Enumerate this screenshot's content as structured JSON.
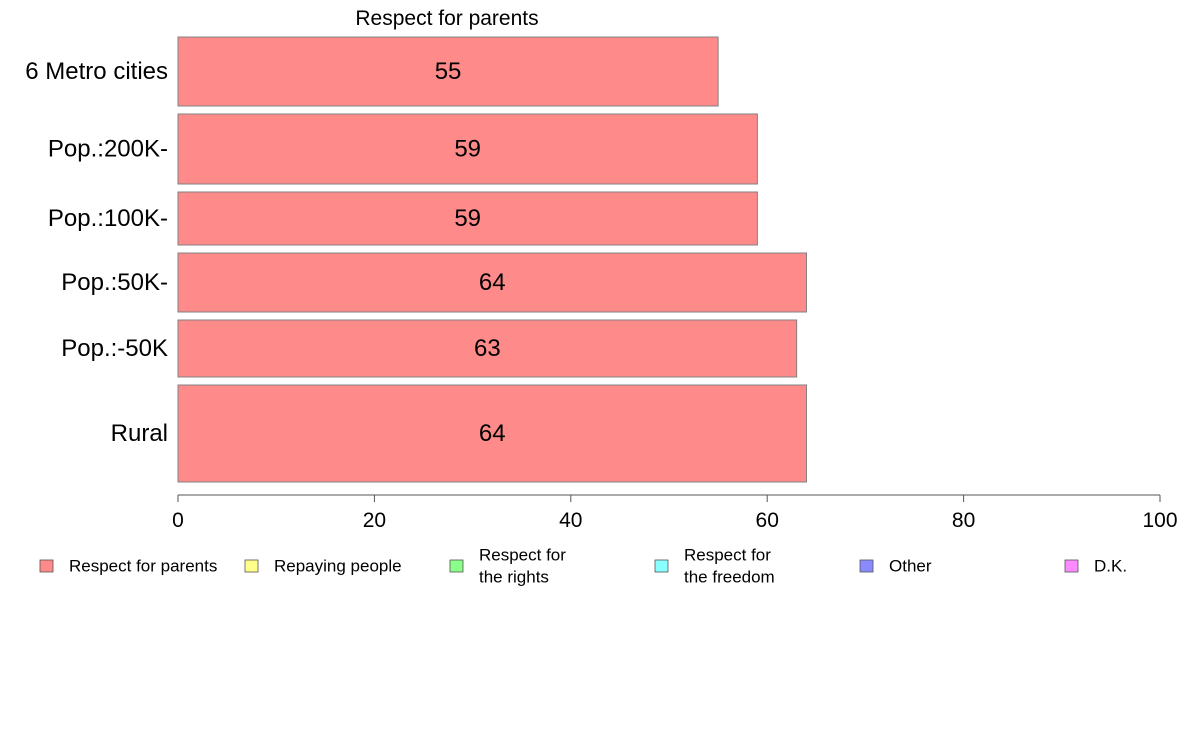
{
  "chart_data": {
    "type": "bar",
    "orientation": "horizontal",
    "title": "Respect for parents",
    "categories": [
      "6 Metro cities",
      "Pop.:200K-",
      "Pop.:100K-",
      "Pop.:50K-",
      "Pop.:-50K",
      "Rural"
    ],
    "series": [
      {
        "name": "Respect for parents",
        "values": [
          55,
          59,
          59,
          64,
          63,
          64
        ]
      }
    ],
    "data_labels": [
      "55",
      "59",
      "59",
      "64",
      "63",
      "64"
    ],
    "xlabel": "",
    "ylabel": "",
    "xlim": [
      0,
      100
    ],
    "x_ticks": [
      "0",
      "20",
      "40",
      "60",
      "80",
      "100"
    ],
    "grid": false,
    "legend_position": "bottom",
    "legend": [
      {
        "lines": [
          "Respect for parents"
        ],
        "color": "#ff8a8a"
      },
      {
        "lines": [
          "Repaying people"
        ],
        "color": "#ffff8a"
      },
      {
        "lines": [
          "Respect for",
          "the rights"
        ],
        "color": "#8aff8a"
      },
      {
        "lines": [
          "Respect for",
          "the freedom"
        ],
        "color": "#8affff"
      },
      {
        "lines": [
          "Other"
        ],
        "color": "#8a8aff"
      },
      {
        "lines": [
          "D.K."
        ],
        "color": "#ff8aff"
      }
    ],
    "bar_color": "#ff8a8a"
  }
}
